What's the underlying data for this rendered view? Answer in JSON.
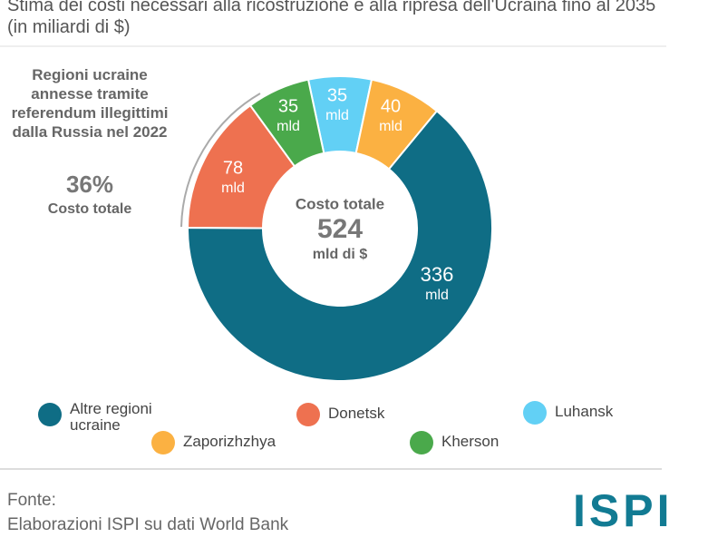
{
  "chart_data": {
    "type": "donut",
    "title": "Stima dei costi necessari alla ricostruzione e alla ripresa dell'Ucraina fino al 2035 (in miliardi di $)",
    "series": [
      {
        "name": "Altre regioni ucraine",
        "color": "#0f6d85",
        "value": 336
      },
      {
        "name": "Donetsk",
        "color": "#ee7150",
        "value": 78
      },
      {
        "name": "Luhansk",
        "color": "#62d0f5",
        "value": 35
      },
      {
        "name": "Zaporizhzhya",
        "color": "#fbb142",
        "value": 40
      },
      {
        "name": "Kherson",
        "color": "#4aa94b",
        "value": 35
      }
    ],
    "value_unit": "mld",
    "center_caption": "Costo totale",
    "total": 524,
    "total_unit": "mld di $",
    "annotation": "Regioni ucraine annesse tramite referendum illegittimi dalla Russia nel 2022",
    "annotation_share": "36%",
    "annotation_caption": "Costo totale",
    "source_label": "Fonte:",
    "source": "Elaborazioni ISPI su dati World Bank",
    "logo": "ISPI"
  }
}
